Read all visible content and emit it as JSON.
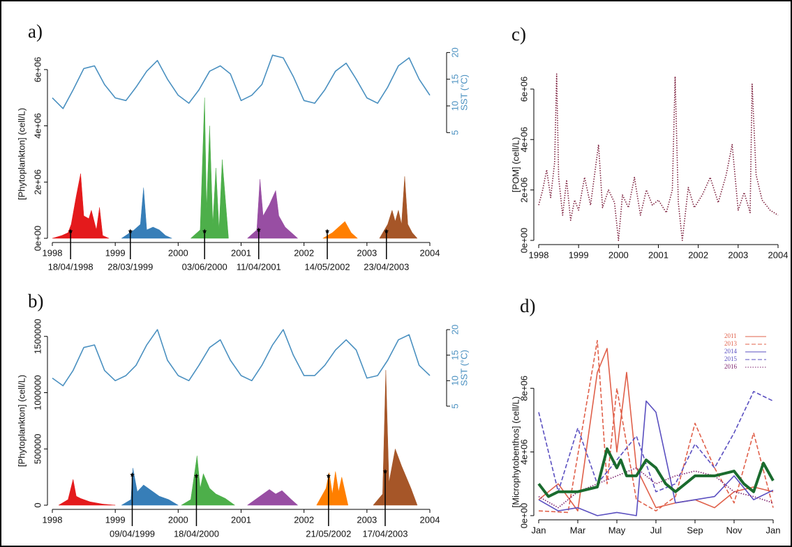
{
  "chart_data": [
    {
      "type": "area",
      "label": "a)",
      "ylabel": "[Phytoplankton] (cell/L)",
      "y2label": "SST (°C)",
      "xlim": [
        1998,
        2004
      ],
      "xticks": [
        1998,
        1999,
        2000,
        2001,
        2002,
        2003,
        2004
      ],
      "ylim": [
        0,
        6740000
      ],
      "yticks": [
        {
          "value": 0,
          "label": "0e+00"
        },
        {
          "value": 2000000,
          "label": "2e+06"
        },
        {
          "value": 4000000,
          "label": "4e+06"
        },
        {
          "value": 6000000,
          "label": "6e+06"
        }
      ],
      "y2lim": [
        -14.8,
        20.7
      ],
      "y2ticks": [
        5,
        10,
        15,
        20
      ],
      "series": [
        {
          "name": "SST",
          "axis": "y2",
          "color": "#4a90c0",
          "x": [
            1998,
            1998.17,
            1998.33,
            1998.5,
            1998.67,
            1998.83,
            1999,
            1999.17,
            1999.33,
            1999.5,
            1999.67,
            1999.83,
            2000,
            2000.17,
            2000.33,
            2000.5,
            2000.67,
            2000.83,
            2001,
            2001.17,
            2001.33,
            2001.5,
            2001.67,
            2001.83,
            2002,
            2002.17,
            2002.33,
            2002.5,
            2002.67,
            2002.83,
            2003,
            2003.17,
            2003.33,
            2003.5,
            2003.67,
            2003.83,
            2004
          ],
          "values": [
            11.5,
            9.5,
            13,
            17,
            17.5,
            14,
            11.5,
            11,
            13.5,
            16.5,
            18.5,
            15,
            12,
            10.5,
            13,
            16.5,
            17.5,
            16,
            11,
            12,
            14,
            19.5,
            19,
            15.5,
            11,
            10.5,
            13,
            16.5,
            18,
            15,
            11.5,
            10.5,
            13.5,
            17.5,
            19,
            15,
            12
          ]
        },
        {
          "color": "#e41a1c",
          "x": [
            1998,
            1998.15,
            1998.25,
            1998.3,
            1998.38,
            1998.45,
            1998.5,
            1998.58,
            1998.62,
            1998.7,
            1998.75,
            1998.8,
            1998.9
          ],
          "values": [
            0,
            100000,
            200000,
            500000,
            1500000,
            2300000,
            800000,
            700000,
            1000000,
            300000,
            1100000,
            100000,
            0
          ]
        },
        {
          "color": "#377eb8",
          "x": [
            1999.1,
            1999.3,
            1999.4,
            1999.45,
            1999.5,
            1999.6,
            1999.7,
            1999.8,
            1999.9
          ],
          "values": [
            0,
            300000,
            500000,
            1800000,
            300000,
            400000,
            300000,
            100000,
            0
          ]
        },
        {
          "color": "#4daf4a",
          "x": [
            2000.2,
            2000.35,
            2000.42,
            2000.45,
            2000.5,
            2000.55,
            2000.6,
            2000.65,
            2000.7,
            2000.8
          ],
          "values": [
            0,
            300000,
            5000000,
            1000000,
            4000000,
            500000,
            2500000,
            300000,
            2800000,
            0
          ]
        },
        {
          "color": "#984ea3",
          "x": [
            2001.1,
            2001.25,
            2001.3,
            2001.35,
            2001.45,
            2001.55,
            2001.6,
            2001.7,
            2001.8,
            2001.9
          ],
          "values": [
            0,
            300000,
            2100000,
            800000,
            1200000,
            1700000,
            800000,
            400000,
            200000,
            0
          ]
        },
        {
          "color": "#ff7f00",
          "x": [
            2002.3,
            2002.45,
            2002.55,
            2002.65,
            2002.75,
            2002.85
          ],
          "values": [
            0,
            200000,
            400000,
            600000,
            200000,
            0
          ]
        },
        {
          "color": "#a65628",
          "x": [
            2003.2,
            2003.33,
            2003.4,
            2003.45,
            2003.5,
            2003.55,
            2003.6,
            2003.65,
            2003.72,
            2003.8
          ],
          "values": [
            0,
            500000,
            1000000,
            600000,
            1000000,
            500000,
            2200000,
            500000,
            200000,
            0
          ]
        }
      ],
      "annotations": [
        {
          "label": "18/04/1998",
          "x": 1998.29,
          "value": 250000
        },
        {
          "label": "28/03/1999",
          "x": 1999.24,
          "value": 250000
        },
        {
          "label": "03/06/2000",
          "x": 2000.42,
          "value": 250000
        },
        {
          "label": "11/04/2001",
          "x": 2001.28,
          "value": 300000
        },
        {
          "label": "14/05/2002",
          "x": 2002.37,
          "value": 250000
        },
        {
          "label": "23/04/2003",
          "x": 2003.31,
          "value": 250000
        }
      ]
    },
    {
      "type": "area",
      "label": "b)",
      "ylabel": "[Phytoplankton] (cell/L)",
      "y2label": "SST (°C)",
      "xlim": [
        1998,
        2004
      ],
      "xticks": [
        1998,
        1999,
        2000,
        2001,
        2002,
        2003,
        2004
      ],
      "ylim": [
        0,
        1610000
      ],
      "yticks": [
        0,
        500000,
        1000000,
        1500000
      ],
      "y2lim": [
        -14.4,
        21.1
      ],
      "y2ticks": [
        5,
        10,
        15,
        20
      ],
      "series": [
        {
          "name": "SST",
          "axis": "y2",
          "color": "#4a90c0",
          "x": [
            1998,
            1998.17,
            1998.33,
            1998.5,
            1998.67,
            1998.83,
            1999,
            1999.17,
            1999.33,
            1999.5,
            1999.67,
            1999.83,
            2000,
            2000.17,
            2000.33,
            2000.5,
            2000.67,
            2000.83,
            2001,
            2001.17,
            2001.33,
            2001.5,
            2001.67,
            2001.83,
            2002,
            2002.17,
            2002.33,
            2002.5,
            2002.67,
            2002.83,
            2003,
            2003.17,
            2003.33,
            2003.5,
            2003.67,
            2003.83,
            2004
          ],
          "values": [
            10.5,
            9,
            12,
            16.5,
            17,
            12,
            10,
            11,
            13,
            17,
            20,
            14,
            11,
            10,
            13,
            16.5,
            18,
            14,
            11,
            10,
            13,
            17,
            20,
            15,
            11,
            11,
            13,
            16,
            18,
            16,
            10.5,
            11,
            14,
            18,
            19,
            13,
            11
          ]
        },
        {
          "color": "#e41a1c",
          "x": [
            1998.1,
            1998.25,
            1998.33,
            1998.38,
            1998.45,
            1998.6,
            1998.8,
            1999.0
          ],
          "values": [
            0,
            50000,
            230000,
            80000,
            60000,
            30000,
            10000,
            0
          ]
        },
        {
          "color": "#377eb8",
          "x": [
            1999.1,
            1999.25,
            1999.28,
            1999.35,
            1999.45,
            1999.55,
            1999.7,
            1999.85,
            2000.0
          ],
          "values": [
            0,
            50000,
            330000,
            120000,
            180000,
            140000,
            80000,
            50000,
            0
          ]
        },
        {
          "color": "#4daf4a",
          "x": [
            2000.05,
            2000.2,
            2000.3,
            2000.35,
            2000.4,
            2000.5,
            2000.6,
            2000.75,
            2000.9
          ],
          "values": [
            0,
            50000,
            440000,
            150000,
            280000,
            150000,
            100000,
            60000,
            0
          ]
        },
        {
          "color": "#984ea3",
          "x": [
            2001.1,
            2001.3,
            2001.45,
            2001.55,
            2001.65,
            2001.8,
            2001.9
          ],
          "values": [
            0,
            80000,
            140000,
            100000,
            130000,
            50000,
            0
          ]
        },
        {
          "color": "#ff7f00",
          "x": [
            2002.2,
            2002.35,
            2002.4,
            2002.45,
            2002.5,
            2002.55,
            2002.6,
            2002.7
          ],
          "values": [
            0,
            150000,
            290000,
            100000,
            300000,
            120000,
            250000,
            0
          ]
        },
        {
          "color": "#a65628",
          "x": [
            2003.1,
            2003.25,
            2003.3,
            2003.35,
            2003.45,
            2003.55,
            2003.7,
            2003.8
          ],
          "values": [
            0,
            100000,
            1200000,
            200000,
            500000,
            350000,
            150000,
            0
          ]
        }
      ],
      "annotations": [
        {
          "label": "09/04/1999",
          "x": 1999.27,
          "value": 270000
        },
        {
          "label": "18/04/2000",
          "x": 2000.29,
          "value": 260000
        },
        {
          "label": "21/05/2002",
          "x": 2002.39,
          "value": 260000
        },
        {
          "label": "17/04/2003",
          "x": 2003.29,
          "value": 300000
        }
      ]
    },
    {
      "type": "line",
      "label": "c)",
      "ylabel": "[POM] (cell/L)",
      "xlim": [
        1998,
        2004
      ],
      "xticks": [
        1998,
        1999,
        2000,
        2001,
        2002,
        2003,
        2004
      ],
      "ylim": [
        0,
        6770000
      ],
      "yticks": [
        {
          "value": 0,
          "label": "0e+00"
        },
        {
          "value": 2000000,
          "label": "2e+06"
        },
        {
          "value": 4000000,
          "label": "4e+06"
        },
        {
          "value": 6000000,
          "label": "6e+06"
        }
      ],
      "series": [
        {
          "color": "#7b1e3c",
          "dash": "dotted",
          "x": [
            1998,
            1998.1,
            1998.2,
            1998.3,
            1998.4,
            1998.45,
            1998.5,
            1998.6,
            1998.7,
            1998.8,
            1998.9,
            1999,
            1999.15,
            1999.3,
            1999.45,
            1999.5,
            1999.6,
            1999.75,
            1999.9,
            2000,
            2000.1,
            2000.25,
            2000.4,
            2000.55,
            2000.7,
            2000.85,
            2001,
            2001.2,
            2001.35,
            2001.42,
            2001.5,
            2001.6,
            2001.75,
            2001.9,
            2002.1,
            2002.3,
            2002.5,
            2002.7,
            2002.85,
            2003,
            2003.15,
            2003.3,
            2003.35,
            2003.45,
            2003.6,
            2003.8,
            2004
          ],
          "values": [
            1400000,
            2000000,
            2800000,
            1700000,
            3100000,
            6600000,
            2500000,
            1000000,
            2400000,
            800000,
            1600000,
            1200000,
            2500000,
            1400000,
            3200000,
            3800000,
            1300000,
            2000000,
            1500000,
            0,
            1800000,
            1300000,
            2500000,
            1000000,
            2000000,
            1400000,
            1600000,
            1100000,
            2000000,
            6500000,
            1500000,
            0,
            2100000,
            1300000,
            1800000,
            2500000,
            1500000,
            2600000,
            3800000,
            1200000,
            1900000,
            1100000,
            6200000,
            2600000,
            1600000,
            1200000,
            1000000
          ]
        }
      ]
    },
    {
      "type": "line",
      "label": "d)",
      "ylabel": "[Microphytobenthos] (cell/L)",
      "xlim": [
        0,
        12
      ],
      "xticks": [
        {
          "value": 0,
          "label": "Jan"
        },
        {
          "value": 2,
          "label": "Mar"
        },
        {
          "value": 4,
          "label": "May"
        },
        {
          "value": 6,
          "label": "Jul"
        },
        {
          "value": 8,
          "label": "Sep"
        },
        {
          "value": 10,
          "label": "Nov"
        },
        {
          "value": 12,
          "label": "Jan"
        }
      ],
      "ylim": [
        0,
        11600000
      ],
      "yticks": [
        {
          "value": 0,
          "label": "0e+00"
        },
        {
          "value": 4000000,
          "label": "4e+06"
        },
        {
          "value": 8000000,
          "label": "8e+06"
        }
      ],
      "legend": "top-right",
      "series": [
        {
          "name": "2011",
          "color": "#e0604a",
          "dash": "solid",
          "x": [
            0,
            1,
            2,
            3,
            3.5,
            4,
            4.5,
            5,
            6,
            7,
            8,
            9,
            10,
            11,
            12
          ],
          "values": [
            1000000,
            2000000,
            300000,
            9000000,
            10500000,
            4000000,
            9000000,
            3000000,
            500000,
            800000,
            1000000,
            500000,
            1500000,
            1800000,
            1500000
          ]
        },
        {
          "name": "2013",
          "color": "#e0604a",
          "dash": "dashed",
          "x": [
            0,
            1.5,
            3,
            3.5,
            4,
            5,
            6,
            7,
            8,
            9,
            10,
            11,
            12
          ],
          "values": [
            300000,
            200000,
            11000000,
            2000000,
            8000000,
            1000000,
            300000,
            1200000,
            5800000,
            3000000,
            800000,
            5200000,
            500000
          ]
        },
        {
          "name": "2014",
          "color": "#5a4fc0",
          "dash": "solid",
          "x": [
            0,
            1,
            2,
            3,
            4,
            5,
            5.5,
            6,
            7,
            8,
            9,
            10,
            11,
            12
          ],
          "values": [
            1000000,
            300000,
            500000,
            0,
            200000,
            0,
            7200000,
            6500000,
            800000,
            1000000,
            1200000,
            2500000,
            1000000,
            1600000
          ]
        },
        {
          "name": "2015",
          "color": "#5a4fc0",
          "dash": "dashed",
          "x": [
            0,
            1,
            2,
            3,
            4,
            5,
            6,
            7,
            8,
            9,
            10,
            11,
            12
          ],
          "values": [
            6500000,
            1500000,
            5500000,
            2000000,
            3500000,
            5000000,
            1500000,
            2000000,
            4500000,
            3000000,
            5200000,
            7800000,
            7200000
          ]
        },
        {
          "name": "2016",
          "color": "#7b1e6a",
          "dash": "dotted",
          "x": [
            0,
            1,
            2,
            3,
            4,
            5,
            6,
            7,
            8,
            9,
            10,
            11,
            12
          ],
          "values": [
            1200000,
            500000,
            1500000,
            2000000,
            2500000,
            3000000,
            2000000,
            2500000,
            2800000,
            2500000,
            1500000,
            1200000,
            800000
          ]
        },
        {
          "color": "#1a6b2e",
          "width": 4,
          "x": [
            0,
            0.5,
            1,
            2,
            3,
            3.5,
            4,
            4.2,
            4.5,
            5,
            5.5,
            6,
            6.5,
            7,
            7.5,
            8,
            9,
            10,
            10.5,
            11,
            11.5,
            12
          ],
          "values": [
            2000000,
            1200000,
            1500000,
            1500000,
            1800000,
            4200000,
            3000000,
            3500000,
            2500000,
            2500000,
            3500000,
            3000000,
            2000000,
            1500000,
            2000000,
            2500000,
            2500000,
            2800000,
            2000000,
            1500000,
            3300000,
            2200000
          ]
        }
      ]
    }
  ]
}
